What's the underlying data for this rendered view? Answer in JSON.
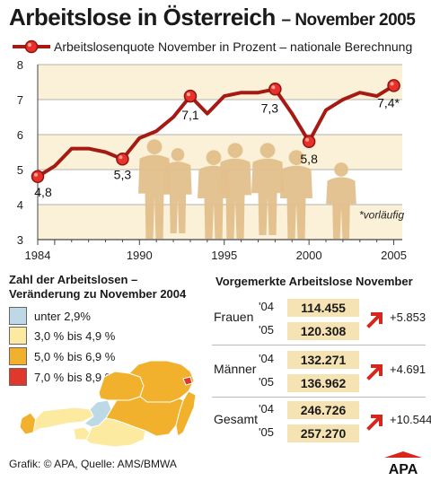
{
  "title": "Arbeitslose in Österreich",
  "subtitle": "– November 2005",
  "chart_data": {
    "type": "line",
    "series": [
      {
        "name": "Arbeitslosenquote November in Prozent – nationale Berechnung",
        "x": [
          1984,
          1985,
          1986,
          1987,
          1988,
          1989,
          1990,
          1991,
          1992,
          1993,
          1994,
          1995,
          1996,
          1997,
          1998,
          1999,
          2000,
          2001,
          2002,
          2003,
          2004,
          2005
        ],
        "values": [
          4.8,
          5.1,
          5.6,
          5.6,
          5.5,
          5.3,
          5.9,
          6.1,
          6.5,
          7.1,
          6.6,
          7.1,
          7.2,
          7.2,
          7.3,
          6.6,
          5.8,
          6.7,
          7.0,
          7.2,
          7.1,
          7.4
        ]
      }
    ],
    "xlim": [
      1984,
      2005.5
    ],
    "ylim": [
      3,
      8
    ],
    "xticks": [
      "1984",
      "1990",
      "1995",
      "2000",
      "2005"
    ],
    "yticks": [
      "3",
      "4",
      "5",
      "6",
      "7",
      "8"
    ],
    "annotations": [
      {
        "x": 1984,
        "text": "4,8"
      },
      {
        "x": 1989,
        "text": "5,3"
      },
      {
        "x": 1993,
        "text": "7,1"
      },
      {
        "x": 1998,
        "text": "7,3"
      },
      {
        "x": 2000,
        "text": "5,8"
      },
      {
        "x": 2005,
        "text": "7,4*"
      }
    ],
    "footnote": "*vorläufig",
    "grid": "horizontal bands",
    "colors": {
      "line": "#a51a12",
      "marker": "#e8312a",
      "band": "#fbf1d8"
    }
  },
  "map": {
    "title_line1": "Zahl der Arbeitslosen –",
    "title_line2": "Veränderung zu November 2004",
    "legend": [
      {
        "label": "unter 2,9%",
        "color": "#bcd9e5"
      },
      {
        "label": "3,0 % bis 4,9 %",
        "color": "#fbeaa0"
      },
      {
        "label": "5,0 % bis 6,9 %",
        "color": "#f2b12c"
      },
      {
        "label": "7,0 % bis 8,9 %",
        "color": "#e0382d"
      }
    ]
  },
  "stats": {
    "title": "Vorgemerkte Arbeitslose November",
    "rows": [
      {
        "label": "Frauen",
        "y1": "'04",
        "v1": "114.455",
        "y2": "'05",
        "v2": "120.308",
        "change": "+5.853"
      },
      {
        "label": "Männer",
        "y1": "'04",
        "v1": "132.271",
        "y2": "'05",
        "v2": "136.962",
        "change": "+4.691"
      },
      {
        "label": "Gesamt",
        "y1": "'04",
        "v1": "246.726",
        "y2": "'05",
        "v2": "257.270",
        "change": "+10.544"
      }
    ]
  },
  "footer": "Grafik: © APA, Quelle: AMS/BMWA",
  "logo": "APA"
}
